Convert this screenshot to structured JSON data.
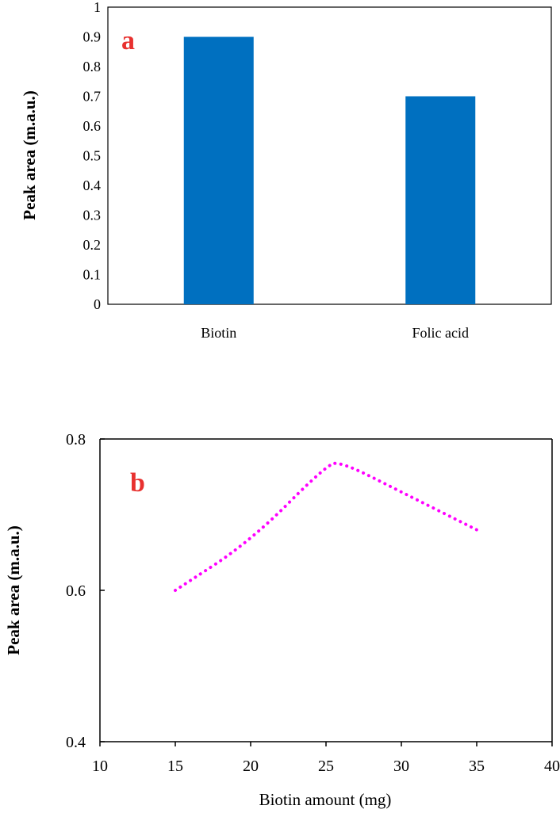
{
  "chart_data": [
    {
      "type": "bar",
      "panel_label": "a",
      "categories": [
        "Biotin",
        "Folic acid"
      ],
      "values": [
        0.9,
        0.7
      ],
      "ylabel": "Peak area (m.a.u.)",
      "xlabel": "",
      "ylim": [
        0,
        1
      ],
      "yticks": [
        "0",
        "0.1",
        "0.2",
        "0.3",
        "0.4",
        "0.5",
        "0.6",
        "0.7",
        "0.8",
        "0.9",
        "1"
      ],
      "grid": false,
      "bar_color": "#0070c0"
    },
    {
      "type": "line",
      "panel_label": "b",
      "x": [
        15,
        20,
        25,
        26,
        30,
        35
      ],
      "y": [
        0.6,
        0.665,
        0.765,
        0.77,
        0.73,
        0.68
      ],
      "xlabel": "Biotin amount (mg)",
      "ylabel": "Peak area (m.a.u.)",
      "xlim": [
        10,
        40
      ],
      "ylim": [
        0.4,
        0.8
      ],
      "xticks": [
        "10",
        "15",
        "20",
        "25",
        "30",
        "35",
        "40"
      ],
      "yticks": [
        "0.4",
        "0.6",
        "0.8"
      ],
      "grid": false,
      "line_style": "dotted",
      "line_color": "#ff00ff"
    }
  ]
}
